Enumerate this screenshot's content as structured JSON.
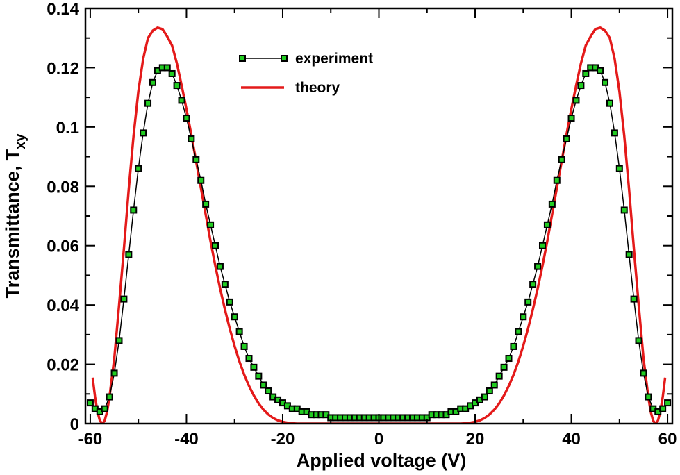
{
  "chart_data": {
    "type": "line",
    "title": "",
    "xlabel": "Applied voltage (V)",
    "ylabel_main": "Transmittance, T",
    "ylabel_subscript": "xy",
    "xlim": [
      -61,
      61
    ],
    "ylim": [
      0,
      0.14
    ],
    "xticks": [
      -60,
      -40,
      -20,
      0,
      20,
      40,
      60
    ],
    "xtick_labels": [
      "-60",
      "-40",
      "-20",
      "0",
      "20",
      "40",
      "60"
    ],
    "yticks": [
      0,
      0.02,
      0.04,
      0.06,
      0.08,
      0.1,
      0.12,
      0.14
    ],
    "ytick_labels": [
      "0",
      "0.02",
      "0.04",
      "0.06",
      "0.08",
      "0.1",
      "0.12",
      "0.14"
    ],
    "grid": false,
    "legend_position": "top-center",
    "series": [
      {
        "name": "experiment",
        "style": "line-with-square-markers",
        "line_color": "#000000",
        "marker_edge_color": "#000000",
        "marker_fill_color": "#22cc22",
        "x": [
          -60,
          -59,
          -58,
          -57,
          -56,
          -55,
          -54,
          -53,
          -52,
          -51,
          -50,
          -49,
          -48,
          -47,
          -46,
          -45,
          -44,
          -43,
          -42,
          -41,
          -40,
          -39,
          -38,
          -37,
          -36,
          -35,
          -34,
          -33,
          -32,
          -31,
          -30,
          -29,
          -28,
          -27,
          -26,
          -25,
          -24,
          -23,
          -22,
          -21,
          -20,
          -19,
          -18,
          -17,
          -16,
          -15,
          -14,
          -13,
          -12,
          -11,
          -10,
          -9,
          -8,
          -7,
          -6,
          -5,
          -4,
          -3,
          -2,
          -1,
          0,
          1,
          2,
          3,
          4,
          5,
          6,
          7,
          8,
          9,
          10,
          11,
          12,
          13,
          14,
          15,
          16,
          17,
          18,
          19,
          20,
          21,
          22,
          23,
          24,
          25,
          26,
          27,
          28,
          29,
          30,
          31,
          32,
          33,
          34,
          35,
          36,
          37,
          38,
          39,
          40,
          41,
          42,
          43,
          44,
          45,
          46,
          47,
          48,
          49,
          50,
          51,
          52,
          53,
          54,
          55,
          56,
          57,
          58,
          59,
          60
        ],
        "y": [
          0.007,
          0.005,
          0.004,
          0.005,
          0.009,
          0.017,
          0.028,
          0.042,
          0.057,
          0.072,
          0.086,
          0.098,
          0.108,
          0.115,
          0.119,
          0.12,
          0.12,
          0.118,
          0.114,
          0.109,
          0.103,
          0.096,
          0.089,
          0.082,
          0.074,
          0.067,
          0.06,
          0.053,
          0.047,
          0.041,
          0.036,
          0.031,
          0.026,
          0.022,
          0.019,
          0.016,
          0.013,
          0.011,
          0.009,
          0.008,
          0.007,
          0.006,
          0.005,
          0.005,
          0.004,
          0.004,
          0.003,
          0.003,
          0.003,
          0.003,
          0.002,
          0.002,
          0.002,
          0.002,
          0.002,
          0.002,
          0.002,
          0.002,
          0.002,
          0.002,
          0.002,
          0.002,
          0.002,
          0.002,
          0.002,
          0.002,
          0.002,
          0.002,
          0.002,
          0.002,
          0.002,
          0.003,
          0.003,
          0.003,
          0.003,
          0.004,
          0.004,
          0.005,
          0.005,
          0.006,
          0.007,
          0.008,
          0.009,
          0.011,
          0.013,
          0.016,
          0.019,
          0.022,
          0.026,
          0.031,
          0.036,
          0.041,
          0.047,
          0.053,
          0.06,
          0.067,
          0.074,
          0.082,
          0.089,
          0.096,
          0.103,
          0.109,
          0.114,
          0.118,
          0.12,
          0.12,
          0.119,
          0.115,
          0.108,
          0.098,
          0.086,
          0.072,
          0.057,
          0.042,
          0.028,
          0.017,
          0.009,
          0.005,
          0.004,
          0.005,
          0.007
        ]
      },
      {
        "name": "theory",
        "style": "line",
        "line_color": "#e41a1a",
        "x": [
          -59.5,
          -59,
          -58.5,
          -58,
          -57.5,
          -57,
          -56.5,
          -56,
          -55,
          -54,
          -53,
          -52,
          -51,
          -50,
          -49,
          -48,
          -47,
          -46,
          -45,
          -44.5,
          -44,
          -43,
          -42,
          -41,
          -40,
          -39,
          -38,
          -37,
          -36,
          -35,
          -34,
          -33,
          -32,
          -31,
          -30,
          -29,
          -28,
          -27,
          -26,
          -25,
          -24,
          -23,
          -22,
          -21,
          -20,
          -19,
          -18,
          -17,
          -16,
          -15,
          -14,
          -13,
          -12,
          -11,
          -10,
          -8,
          -6,
          -4,
          -2,
          0,
          2,
          4,
          6,
          8,
          10,
          11,
          12,
          13,
          14,
          15,
          16,
          17,
          18,
          19,
          20,
          21,
          22,
          23,
          24,
          25,
          26,
          27,
          28,
          29,
          30,
          31,
          32,
          33,
          34,
          35,
          36,
          37,
          38,
          39,
          40,
          41,
          42,
          43,
          44,
          44.5,
          45,
          46,
          47,
          48,
          49,
          50,
          51,
          52,
          53,
          54,
          55,
          56,
          56.5,
          57,
          57.5,
          58,
          58.5,
          59,
          59.5
        ],
        "y": [
          0.0155,
          0.009,
          0.004,
          0.001,
          0.0,
          0.001,
          0.004,
          0.009,
          0.022,
          0.04,
          0.059,
          0.079,
          0.097,
          0.112,
          0.123,
          0.13,
          0.1325,
          0.1335,
          0.133,
          0.1318,
          0.1305,
          0.1275,
          0.1215,
          0.114,
          0.106,
          0.0975,
          0.0885,
          0.0795,
          0.0705,
          0.0615,
          0.0532,
          0.0455,
          0.0385,
          0.032,
          0.0262,
          0.021,
          0.0165,
          0.0127,
          0.0095,
          0.0068,
          0.0047,
          0.0031,
          0.0019,
          0.0011,
          0.0006,
          0.0003,
          0.0001,
          0.0,
          0.0,
          0.0,
          0.0,
          0.0,
          0.0,
          0.0,
          0.0,
          0.0,
          0.0,
          0.0,
          0.0,
          0.0,
          0.0,
          0.0,
          0.0,
          0.0,
          0.0,
          0.0,
          0.0,
          0.0,
          0.0,
          0.0,
          0.0,
          0.0,
          0.0001,
          0.0003,
          0.0006,
          0.0011,
          0.0019,
          0.0031,
          0.0047,
          0.0068,
          0.0095,
          0.0127,
          0.0165,
          0.021,
          0.0262,
          0.032,
          0.0385,
          0.0455,
          0.0532,
          0.0615,
          0.0705,
          0.0795,
          0.0885,
          0.0975,
          0.106,
          0.114,
          0.1215,
          0.1275,
          0.1305,
          0.1318,
          0.133,
          0.1335,
          0.1325,
          0.13,
          0.123,
          0.112,
          0.097,
          0.079,
          0.059,
          0.04,
          0.022,
          0.009,
          0.004,
          0.001,
          0.0,
          0.001,
          0.004,
          0.009,
          0.0155
        ]
      }
    ]
  }
}
